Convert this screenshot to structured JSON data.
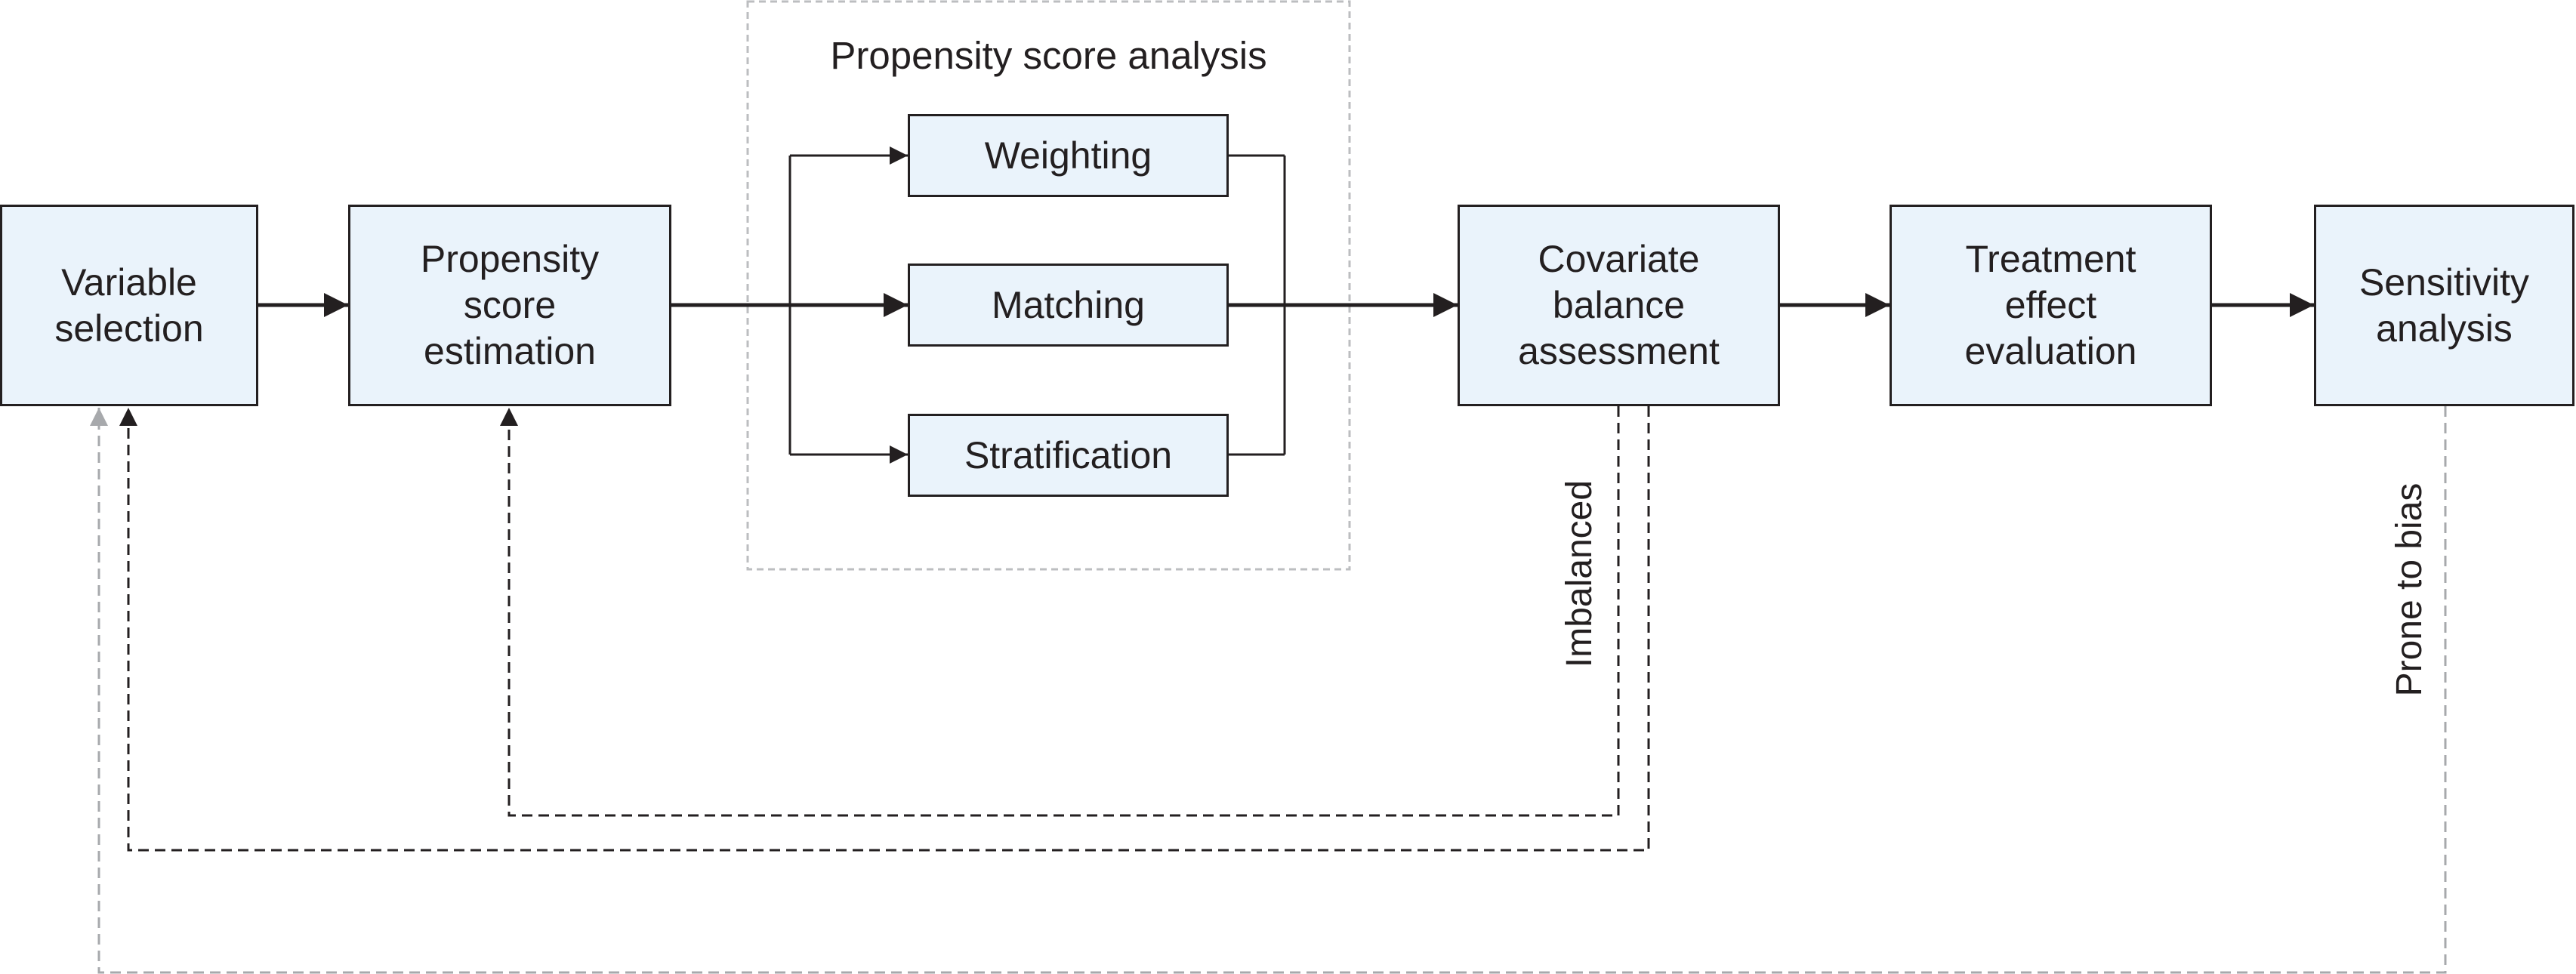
{
  "diagram": {
    "group": {
      "title": "Propensity score analysis"
    },
    "nodes": {
      "variable_selection": {
        "lines": [
          "Variable",
          "selection"
        ]
      },
      "ps_estimation": {
        "lines": [
          "Propensity",
          "score",
          "estimation"
        ]
      },
      "weighting": {
        "lines": [
          "Weighting"
        ]
      },
      "matching": {
        "lines": [
          "Matching"
        ]
      },
      "stratification": {
        "lines": [
          "Stratification"
        ]
      },
      "covariate_balance": {
        "lines": [
          "Covariate",
          "balance",
          "assessment"
        ]
      },
      "treatment_effect": {
        "lines": [
          "Treatment",
          "effect",
          "evaluation"
        ]
      },
      "sensitivity": {
        "lines": [
          "Sensitivity",
          "analysis"
        ]
      }
    },
    "labels": {
      "imbalanced": "Imbalanced",
      "prone_to_bias": "Prone to bias"
    },
    "colors": {
      "box_fill": "#eaf3fb",
      "line": "#231f20",
      "dashed_gray": "#a7a9ac"
    }
  }
}
